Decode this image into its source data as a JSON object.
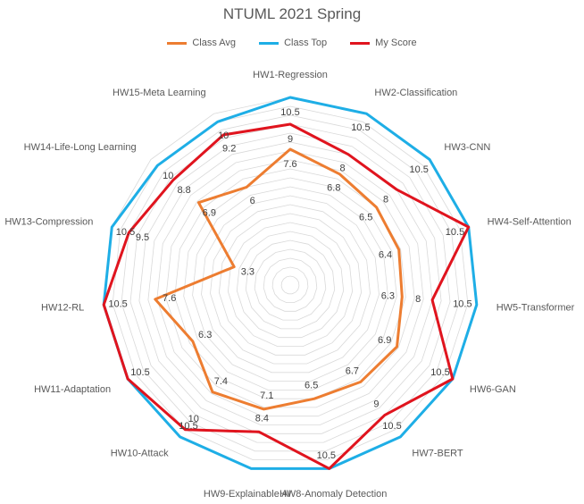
{
  "chart_data": {
    "type": "radar",
    "title": "NTUML 2021 Spring",
    "categories": [
      "HW1-Regression",
      "HW2-Classification",
      "HW3-CNN",
      "HW4-Self-Attention",
      "HW5-Transformer",
      "HW6-GAN",
      "HW7-BERT",
      "HW8-Anomaly Detection",
      "HW9-Explainable AI",
      "HW10-Attack",
      "HW11-Adaptation",
      "HW12-RL",
      "HW13-Compression",
      "HW14-Life-Long Learning",
      "HW15-Meta Learning"
    ],
    "series": [
      {
        "name": "Class Avg",
        "color": "#ED7D31",
        "values": [
          7.6,
          6.8,
          6.5,
          6.4,
          6.3,
          6.9,
          6.7,
          6.5,
          7.1,
          7.4,
          6.3,
          7.6,
          3.3,
          6.9,
          6.0
        ],
        "labels": [
          "7.6",
          "6.8",
          "6.5",
          "6.4",
          "6.3",
          "6.9",
          "6.7",
          "6.5",
          "7.1",
          "7.4",
          "6.3",
          "7.6",
          "3.3",
          "6.9",
          "6"
        ]
      },
      {
        "name": "Class Top",
        "color": "#1EAEE6",
        "values": [
          10.5,
          10.5,
          10.5,
          10.5,
          10.5,
          10.5,
          10.5,
          10.5,
          10.5,
          10.5,
          10.5,
          10.5,
          10.5,
          10,
          10
        ],
        "labels": [
          "10.5",
          "10.5",
          "10.5",
          "10.5",
          "10.5",
          "10.5",
          "10.5",
          "10.5",
          "",
          "10.5",
          "10.5",
          "10.5",
          "10.5",
          "10",
          "10"
        ]
      },
      {
        "name": "My Score",
        "color": "#E0141E",
        "values": [
          9,
          8,
          8,
          10.5,
          8,
          10.5,
          9,
          10.5,
          8.4,
          10,
          10.5,
          10.5,
          9.5,
          8.8,
          9.2
        ],
        "labels": [
          "9",
          "8",
          "8",
          "",
          "8",
          "",
          "9",
          "",
          "8.4",
          "10",
          "",
          "",
          "9.5",
          "8.8",
          "9.2"
        ]
      }
    ],
    "rmax": 10.5,
    "gridlines": true,
    "legend_position": "top"
  }
}
